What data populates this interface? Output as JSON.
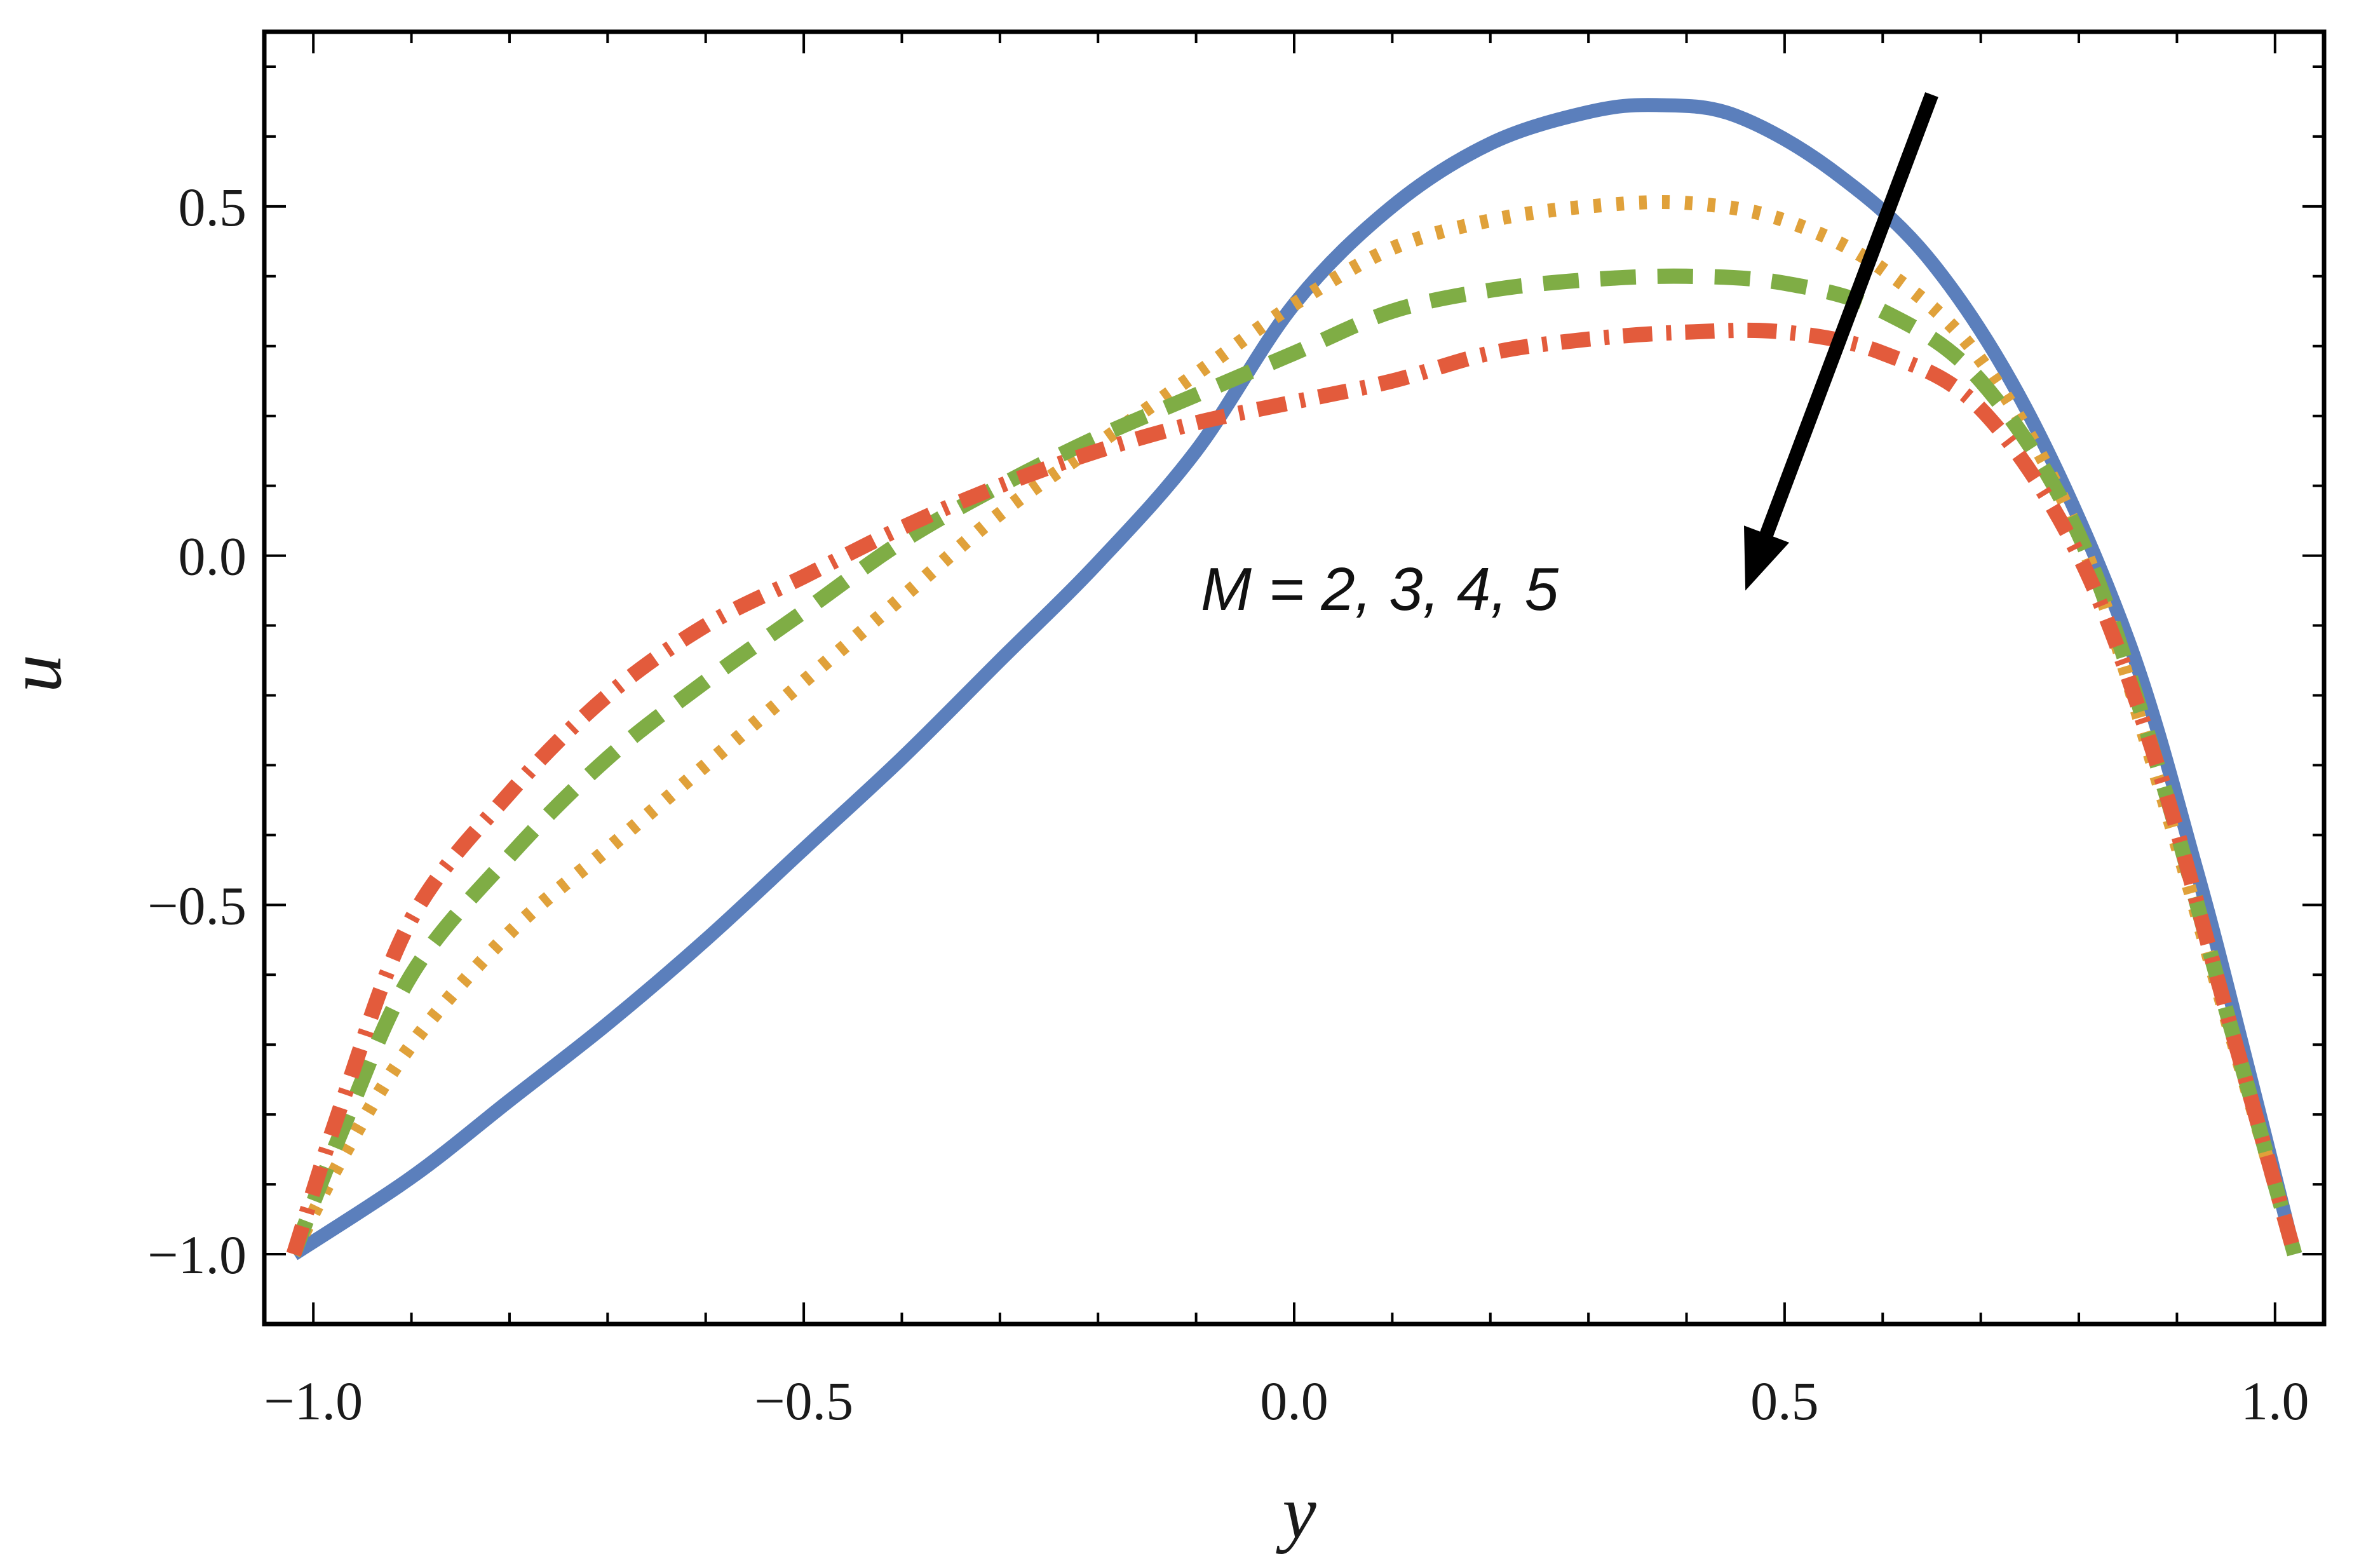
{
  "chart_data": {
    "type": "line",
    "title": "",
    "xlabel": "y",
    "ylabel": "u",
    "xlim": [
      -1.05,
      1.05
    ],
    "ylim": [
      -1.1,
      0.75
    ],
    "xticks": [
      -1.0,
      -0.5,
      0.0,
      0.5,
      1.0
    ],
    "xtick_labels": [
      "−1.0",
      "−0.5",
      "0.0",
      "0.5",
      "1.0"
    ],
    "yticks": [
      -1.0,
      -0.5,
      0.0,
      0.5
    ],
    "ytick_labels": [
      "−1.0",
      "−0.5",
      "0.0",
      "0.5"
    ],
    "grid": false,
    "annotation": {
      "text": "M = 2, 3, 4, 5",
      "arrow_from": [
        0.65,
        0.66
      ],
      "arrow_to": [
        0.46,
        -0.05
      ]
    },
    "series": [
      {
        "name": "M = 2",
        "color": "#5b7fbc",
        "style": "solid",
        "x": [
          -1.02,
          -0.9,
          -0.8,
          -0.7,
          -0.6,
          -0.5,
          -0.4,
          -0.3,
          -0.2,
          -0.1,
          0.0,
          0.1,
          0.2,
          0.3,
          0.37,
          0.45,
          0.55,
          0.65,
          0.75,
          0.85,
          0.92,
          0.97,
          1.02
        ],
        "y": [
          -1.0,
          -0.89,
          -0.78,
          -0.67,
          -0.55,
          -0.42,
          -0.29,
          -0.15,
          -0.01,
          0.15,
          0.36,
          0.5,
          0.59,
          0.635,
          0.645,
          0.63,
          0.55,
          0.42,
          0.2,
          -0.12,
          -0.45,
          -0.72,
          -1.0
        ]
      },
      {
        "name": "M = 3",
        "color": "#e0a13a",
        "style": "dotted",
        "x": [
          -1.02,
          -0.97,
          -0.9,
          -0.8,
          -0.7,
          -0.6,
          -0.5,
          -0.4,
          -0.3,
          -0.2,
          -0.1,
          0.0,
          0.1,
          0.2,
          0.3,
          0.4,
          0.5,
          0.6,
          0.7,
          0.8,
          0.88,
          0.95,
          1.02
        ],
        "y": [
          -1.0,
          -0.86,
          -0.7,
          -0.54,
          -0.42,
          -0.3,
          -0.18,
          -0.06,
          0.06,
          0.16,
          0.26,
          0.36,
          0.44,
          0.48,
          0.5,
          0.505,
          0.48,
          0.41,
          0.28,
          0.03,
          -0.32,
          -0.66,
          -1.0
        ]
      },
      {
        "name": "M = 4",
        "color": "#7fad45",
        "style": "dashed",
        "x": [
          -1.02,
          -0.97,
          -0.9,
          -0.8,
          -0.7,
          -0.6,
          -0.5,
          -0.4,
          -0.3,
          -0.2,
          -0.1,
          0.0,
          0.1,
          0.2,
          0.3,
          0.4,
          0.5,
          0.6,
          0.7,
          0.8,
          0.88,
          0.95,
          1.02
        ],
        "y": [
          -1.0,
          -0.82,
          -0.6,
          -0.43,
          -0.29,
          -0.18,
          -0.08,
          0.02,
          0.1,
          0.17,
          0.23,
          0.29,
          0.35,
          0.38,
          0.395,
          0.4,
          0.39,
          0.35,
          0.25,
          0.03,
          -0.3,
          -0.65,
          -1.0
        ]
      },
      {
        "name": "M = 5",
        "color": "#e35b3c",
        "style": "dashdot",
        "x": [
          -1.02,
          -0.97,
          -0.9,
          -0.8,
          -0.7,
          -0.6,
          -0.5,
          -0.4,
          -0.3,
          -0.2,
          -0.1,
          0.0,
          0.1,
          0.2,
          0.3,
          0.4,
          0.5,
          0.6,
          0.7,
          0.8,
          0.88,
          0.95,
          1.02
        ],
        "y": [
          -1.0,
          -0.78,
          -0.52,
          -0.34,
          -0.2,
          -0.1,
          -0.03,
          0.04,
          0.1,
          0.15,
          0.19,
          0.22,
          0.25,
          0.29,
          0.31,
          0.32,
          0.32,
          0.29,
          0.21,
          0.0,
          -0.3,
          -0.65,
          -1.0
        ]
      }
    ]
  }
}
